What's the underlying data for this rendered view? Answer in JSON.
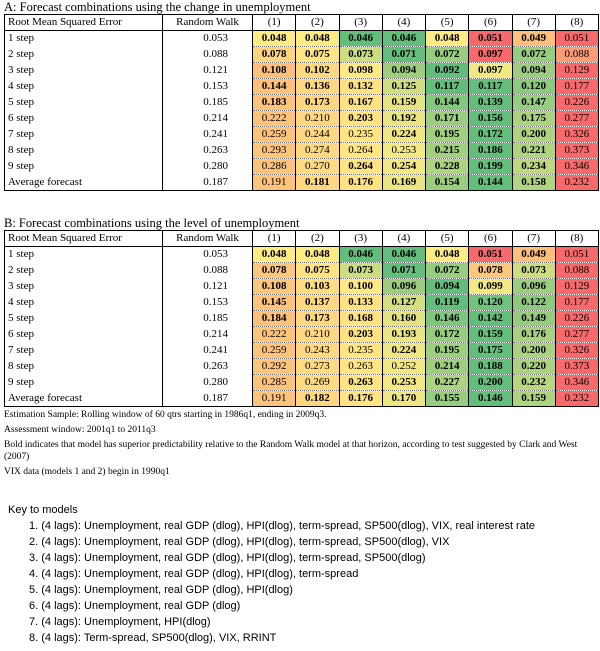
{
  "panels": [
    {
      "title": "A: Forecast combinations using the change in unemployment",
      "header": [
        "Root Mean Squared Error",
        "Random Walk",
        "(1)",
        "(2)",
        "(3)",
        "(4)",
        "(5)",
        "(6)",
        "(7)",
        "(8)"
      ],
      "rows": [
        {
          "label": "1 step",
          "random_walk": "0.053",
          "models": [
            "0.048",
            "0.048",
            "0.046",
            "0.046",
            "0.048",
            "0.051",
            "0.049",
            "0.051"
          ],
          "bold": [
            true,
            true,
            true,
            true,
            true,
            true,
            true,
            false
          ]
        },
        {
          "label": "2 step",
          "random_walk": "0.088",
          "models": [
            "0.078",
            "0.075",
            "0.073",
            "0.071",
            "0.072",
            "0.097",
            "0.072",
            "0.088"
          ],
          "bold": [
            true,
            true,
            true,
            true,
            true,
            true,
            true,
            false
          ]
        },
        {
          "label": "3 step",
          "random_walk": "0.121",
          "models": [
            "0.108",
            "0.102",
            "0.098",
            "0.094",
            "0.092",
            "0.097",
            "0.094",
            "0.129"
          ],
          "bold": [
            true,
            true,
            true,
            true,
            true,
            true,
            true,
            false
          ]
        },
        {
          "label": "4 step",
          "random_walk": "0.153",
          "models": [
            "0.144",
            "0.136",
            "0.132",
            "0.125",
            "0.117",
            "0.117",
            "0.120",
            "0.177"
          ],
          "bold": [
            true,
            true,
            true,
            true,
            true,
            true,
            true,
            false
          ]
        },
        {
          "label": "5 step",
          "random_walk": "0.185",
          "models": [
            "0.183",
            "0.173",
            "0.167",
            "0.159",
            "0.144",
            "0.139",
            "0.147",
            "0.226"
          ],
          "bold": [
            true,
            true,
            true,
            true,
            true,
            true,
            true,
            false
          ]
        },
        {
          "label": "6 step",
          "random_walk": "0.214",
          "models": [
            "0.222",
            "0.210",
            "0.203",
            "0.192",
            "0.171",
            "0.156",
            "0.175",
            "0.277"
          ],
          "bold": [
            false,
            false,
            true,
            true,
            true,
            true,
            true,
            false
          ]
        },
        {
          "label": "7 step",
          "random_walk": "0.241",
          "models": [
            "0.259",
            "0.244",
            "0.235",
            "0.224",
            "0.195",
            "0.172",
            "0.200",
            "0.326"
          ],
          "bold": [
            false,
            false,
            false,
            true,
            true,
            true,
            true,
            false
          ]
        },
        {
          "label": "8 step",
          "random_walk": "0.263",
          "models": [
            "0.293",
            "0.274",
            "0.264",
            "0.253",
            "0.215",
            "0.186",
            "0.221",
            "0.373"
          ],
          "bold": [
            false,
            false,
            false,
            false,
            true,
            true,
            true,
            false
          ]
        },
        {
          "label": "9 step",
          "random_walk": "0.280",
          "models": [
            "0.286",
            "0.270",
            "0.264",
            "0.254",
            "0.228",
            "0.199",
            "0.234",
            "0.346"
          ],
          "bold": [
            false,
            false,
            true,
            true,
            true,
            true,
            true,
            false
          ]
        },
        {
          "label": "Average forecast",
          "random_walk": "0.187",
          "models": [
            "0.191",
            "0.181",
            "0.176",
            "0.169",
            "0.154",
            "0.144",
            "0.158",
            "0.232"
          ],
          "bold": [
            false,
            true,
            true,
            true,
            true,
            true,
            true,
            false
          ]
        }
      ]
    },
    {
      "title": "B: Forecast combinations using the level of unemployment",
      "header": [
        "Root Mean Squared Error",
        "Random Walk",
        "(1)",
        "(2)",
        "(3)",
        "(4)",
        "(5)",
        "(6)",
        "(7)",
        "(8)"
      ],
      "rows": [
        {
          "label": "1 step",
          "random_walk": "0.053",
          "models": [
            "0.048",
            "0.048",
            "0.046",
            "0.046",
            "0.048",
            "0.051",
            "0.049",
            "0.051"
          ],
          "bold": [
            true,
            true,
            true,
            true,
            true,
            true,
            true,
            false
          ]
        },
        {
          "label": "2 step",
          "random_walk": "0.088",
          "models": [
            "0.078",
            "0.075",
            "0.073",
            "0.071",
            "0.072",
            "0.078",
            "0.073",
            "0.088"
          ],
          "bold": [
            true,
            true,
            true,
            true,
            true,
            true,
            true,
            false
          ]
        },
        {
          "label": "3 step",
          "random_walk": "0.121",
          "models": [
            "0.108",
            "0.103",
            "0.100",
            "0.096",
            "0.094",
            "0.099",
            "0.096",
            "0.129"
          ],
          "bold": [
            true,
            true,
            true,
            true,
            true,
            true,
            true,
            false
          ]
        },
        {
          "label": "4 step",
          "random_walk": "0.153",
          "models": [
            "0.145",
            "0.137",
            "0.133",
            "0.127",
            "0.119",
            "0.120",
            "0.122",
            "0.177"
          ],
          "bold": [
            true,
            true,
            true,
            true,
            true,
            true,
            true,
            false
          ]
        },
        {
          "label": "5 step",
          "random_walk": "0.185",
          "models": [
            "0.184",
            "0.173",
            "0.168",
            "0.160",
            "0.146",
            "0.142",
            "0.149",
            "0.226"
          ],
          "bold": [
            true,
            true,
            true,
            true,
            true,
            true,
            true,
            false
          ]
        },
        {
          "label": "6 step",
          "random_walk": "0.214",
          "models": [
            "0.222",
            "0.210",
            "0.203",
            "0.193",
            "0.172",
            "0.159",
            "0.176",
            "0.277"
          ],
          "bold": [
            false,
            false,
            true,
            true,
            true,
            true,
            true,
            false
          ]
        },
        {
          "label": "7 step",
          "random_walk": "0.241",
          "models": [
            "0.259",
            "0.243",
            "0.235",
            "0.224",
            "0.195",
            "0.175",
            "0.200",
            "0.326"
          ],
          "bold": [
            false,
            false,
            false,
            true,
            true,
            true,
            true,
            false
          ]
        },
        {
          "label": "8 step",
          "random_walk": "0.263",
          "models": [
            "0.292",
            "0.273",
            "0.263",
            "0.252",
            "0.214",
            "0.188",
            "0.220",
            "0.373"
          ],
          "bold": [
            false,
            false,
            false,
            false,
            true,
            true,
            true,
            false
          ]
        },
        {
          "label": "9 step",
          "random_walk": "0.280",
          "models": [
            "0.285",
            "0.269",
            "0.263",
            "0.253",
            "0.227",
            "0.200",
            "0.232",
            "0.346"
          ],
          "bold": [
            false,
            false,
            true,
            true,
            true,
            true,
            true,
            false
          ]
        },
        {
          "label": "Average forecast",
          "random_walk": "0.187",
          "models": [
            "0.191",
            "0.182",
            "0.176",
            "0.170",
            "0.155",
            "0.146",
            "0.159",
            "0.232"
          ],
          "bold": [
            false,
            true,
            true,
            true,
            true,
            true,
            true,
            false
          ]
        }
      ]
    }
  ],
  "notes": [
    "Estimation Sample: Rolling window of 60 qtrs starting in 1986q1, ending in 2009q3.",
    "Assessment window: 2001q1 to 2011q3",
    "Bold indicates that model has superior predictability relative to the Random Walk model at that horizon, according to test suggested by Clark and West (2007)",
    "VIX data (models 1 and 2) begin in 1990q1"
  ],
  "key": {
    "title": "Key to models",
    "items": [
      "1. (4 lags): Unemployment, real GDP (dlog),  HPI(dlog), term-spread, SP500(dlog), VIX, real interest rate",
      "2. (4 lags): Unemployment, real GDP (dlog),  HPI(dlog), term-spread, SP500(dlog), VIX",
      "3. (4 lags): Unemployment, real GDP (dlog),  HPI(dlog), term-spread, SP500(dlog)",
      "4. (4 lags): Unemployment, real GDP (dlog),  HPI(dlog), term-spread",
      "5. (4 lags): Unemployment, real GDP (dlog),  HPI(dlog)",
      "6. (4 lags): Unemployment, real GDP (dlog)",
      "7. (4 lags): Unemployment, HPI(dlog)",
      "8. (4 lags): Term-spread, SP500(dlog), VIX, RRINT"
    ]
  }
}
